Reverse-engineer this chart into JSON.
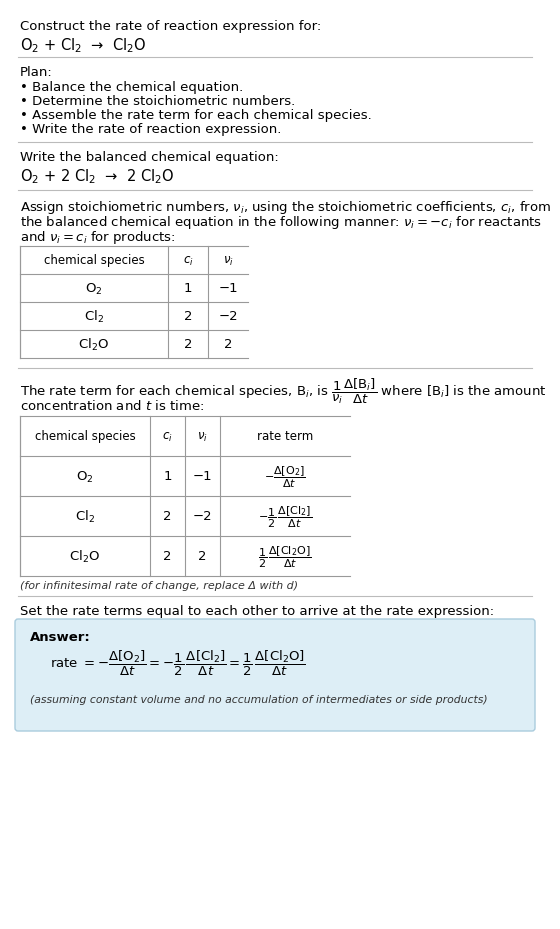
{
  "bg_color": "#ffffff",
  "text_color": "#000000",
  "answer_bg": "#ddeef6",
  "answer_border": "#aaccdd",
  "title_text": "Construct the rate of reaction expression for:",
  "reaction_unbalanced": "O$_2$ + Cl$_2$  →  Cl$_2$O",
  "plan_header": "Plan:",
  "plan_items": [
    "• Balance the chemical equation.",
    "• Determine the stoichiometric numbers.",
    "• Assemble the rate term for each chemical species.",
    "• Write the rate of reaction expression."
  ],
  "balanced_header": "Write the balanced chemical equation:",
  "reaction_balanced": "O$_2$ + 2 Cl$_2$  →  2 Cl$_2$O",
  "stoich_intro_l1": "Assign stoichiometric numbers, $\\nu_i$, using the stoichiometric coefficients, $c_i$, from",
  "stoich_intro_l2": "the balanced chemical equation in the following manner: $\\nu_i = -c_i$ for reactants",
  "stoich_intro_l3": "and $\\nu_i = c_i$ for products:",
  "table1_headers": [
    "chemical species",
    "$c_i$",
    "$\\nu_i$"
  ],
  "table1_rows": [
    [
      "O$_2$",
      "1",
      "−1"
    ],
    [
      "Cl$_2$",
      "2",
      "−2"
    ],
    [
      "Cl$_2$O",
      "2",
      "2"
    ]
  ],
  "rate_intro_l1": "The rate term for each chemical species, B$_i$, is $\\dfrac{1}{\\nu_i}\\dfrac{\\Delta[\\mathrm{B}_i]}{\\Delta t}$ where [B$_i$] is the amount",
  "rate_intro_l2": "concentration and $t$ is time:",
  "table2_headers": [
    "chemical species",
    "$c_i$",
    "$\\nu_i$",
    "rate term"
  ],
  "table2_rows": [
    [
      "O$_2$",
      "1",
      "−1",
      "$-\\dfrac{\\Delta[\\mathrm{O_2}]}{\\Delta t}$"
    ],
    [
      "Cl$_2$",
      "2",
      "−2",
      "$-\\dfrac{1}{2}\\,\\dfrac{\\Delta[\\mathrm{Cl_2}]}{\\Delta t}$"
    ],
    [
      "Cl$_2$O",
      "2",
      "2",
      "$\\dfrac{1}{2}\\,\\dfrac{\\Delta[\\mathrm{Cl_2O}]}{\\Delta t}$"
    ]
  ],
  "infinitesimal_note": "(for infinitesimal rate of change, replace Δ with d)",
  "set_equal_text": "Set the rate terms equal to each other to arrive at the rate expression:",
  "answer_label": "Answer:",
  "rate_expression": "rate $= -\\dfrac{\\Delta[\\mathrm{O_2}]}{\\Delta t} = -\\dfrac{1}{2}\\,\\dfrac{\\Delta[\\mathrm{Cl_2}]}{\\Delta t} = \\dfrac{1}{2}\\,\\dfrac{\\Delta[\\mathrm{Cl_2O}]}{\\Delta t}$",
  "assumption_note": "(assuming constant volume and no accumulation of intermediates or side products)"
}
